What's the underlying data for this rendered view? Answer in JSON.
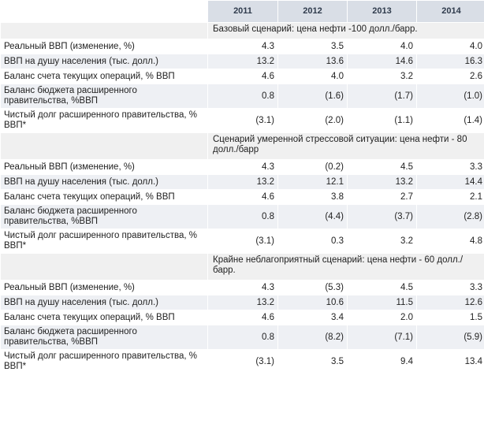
{
  "headers": [
    "",
    "2011",
    "2012",
    "2013",
    "2014"
  ],
  "scenarios": [
    {
      "title": "Базовый сценарий: цена нефти -100 долл./барр.",
      "rows": [
        {
          "label": "Реальный ВВП (изменение, %)",
          "values": [
            "4.3",
            "3.5",
            "4.0",
            "4.0"
          ]
        },
        {
          "label": "ВВП на душу населения (тыс. долл.)",
          "values": [
            "13.2",
            "13.6",
            "14.6",
            "16.3"
          ]
        },
        {
          "label": "Баланс счета текущих операций, % ВВП",
          "values": [
            "4.6",
            "4.0",
            "3.2",
            "2.6"
          ]
        },
        {
          "label": "Баланс бюджета расширенного правительства, %ВВП",
          "values": [
            "0.8",
            "(1.6)",
            "(1.7)",
            "(1.0)"
          ]
        },
        {
          "label": "Чистый долг расширенного правительства, % ВВП*",
          "values": [
            "(3.1)",
            "(2.0)",
            "(1.1)",
            "(1.4)"
          ]
        }
      ]
    },
    {
      "title": "Сценарий умеренной стрессовой ситуации: цена нефти - 80 долл./барр",
      "rows": [
        {
          "label": "Реальный ВВП (изменение, %)",
          "values": [
            "4.3",
            "(0.2)",
            "4.5",
            "3.3"
          ]
        },
        {
          "label": "ВВП на душу населения (тыс. долл.)",
          "values": [
            "13.2",
            "12.1",
            "13.2",
            "14.4"
          ]
        },
        {
          "label": "Баланс счета текущих операций, % ВВП",
          "values": [
            "4.6",
            "3.8",
            "2.7",
            "2.1"
          ]
        },
        {
          "label": "Баланс бюджета расширенного правительства, %ВВП",
          "values": [
            "0.8",
            "(4.4)",
            "(3.7)",
            "(2.8)"
          ]
        },
        {
          "label": "Чистый долг расширенного правительства, % ВВП*",
          "values": [
            "(3.1)",
            "0.3",
            "3.2",
            "4.8"
          ]
        }
      ]
    },
    {
      "title": "Крайне неблагоприятный сценарий: цена нефти - 60 долл./барр.",
      "rows": [
        {
          "label": "Реальный ВВП (изменение, %)",
          "values": [
            "4.3",
            "(5.3)",
            "4.5",
            "3.3"
          ]
        },
        {
          "label": "ВВП на душу населения (тыс. долл.)",
          "values": [
            "13.2",
            "10.6",
            "11.5",
            "12.6"
          ]
        },
        {
          "label": "Баланс счета текущих операций, % ВВП",
          "values": [
            "4.6",
            "3.4",
            "2.0",
            "1.5"
          ]
        },
        {
          "label": "Баланс бюджета расширенного правительства, %ВВП",
          "values": [
            "0.8",
            "(8.2)",
            "(7.1)",
            "(5.9)"
          ]
        },
        {
          "label": "Чистый долг расширенного правительства, % ВВП*",
          "values": [
            "(3.1)",
            "3.5",
            "9.4",
            "13.4"
          ]
        }
      ]
    }
  ]
}
